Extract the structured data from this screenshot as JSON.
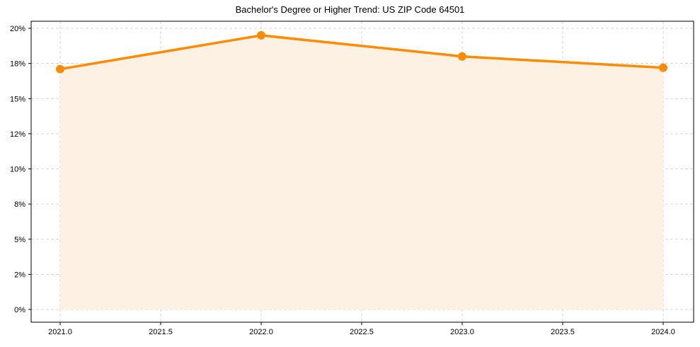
{
  "chart_data": {
    "type": "line",
    "title": "Bachelor's Degree or Higher Trend: US ZIP Code 64501",
    "xlabel": "",
    "ylabel": "",
    "x": [
      2021,
      2022,
      2023,
      2024
    ],
    "series": [
      {
        "name": "Bachelor's Degree or Higher",
        "values": [
          17.1,
          19.5,
          18.0,
          17.2
        ],
        "color": "#ff8c00",
        "fill_color": "#fdf1e4",
        "marker": "circle"
      }
    ],
    "xlim": [
      2020.86,
      2024.15
    ],
    "ylim": [
      -0.9,
      20.5
    ],
    "x_ticks": [
      2021.0,
      2021.5,
      2022.0,
      2022.5,
      2023.0,
      2023.5,
      2024.0
    ],
    "x_tick_labels": [
      "2021.0",
      "2021.5",
      "2022.0",
      "2022.5",
      "2023.0",
      "2023.5",
      "2024.0"
    ],
    "y_ticks": [
      0,
      2.5,
      5,
      7.5,
      10,
      12.5,
      15,
      17.5,
      20
    ],
    "y_tick_labels": [
      "0%",
      "2%",
      "5%",
      "8%",
      "10%",
      "12%",
      "15%",
      "18%",
      "20%"
    ],
    "grid": true,
    "grid_style": "dashed",
    "legend": null
  },
  "colors": {
    "line": "#ff8c00",
    "fill": "#fdf1e4",
    "grid": "#cccccc",
    "axis": "#000000"
  }
}
